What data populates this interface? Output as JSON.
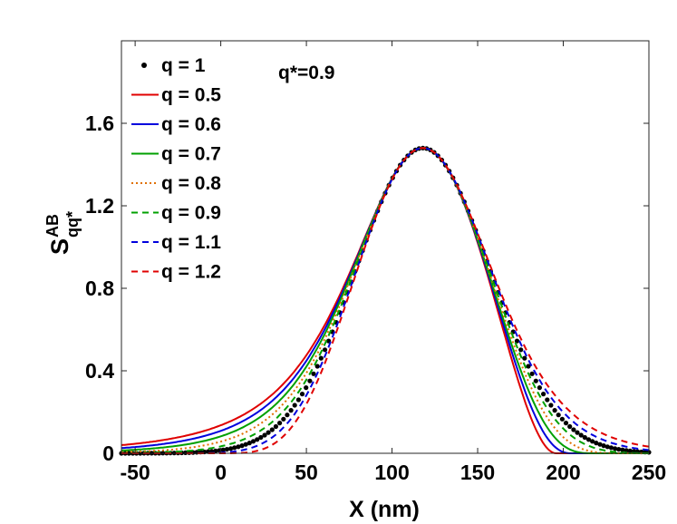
{
  "chart_data": {
    "type": "line",
    "title": "",
    "annotation": "q*=0.9",
    "xlabel": "X (nm)",
    "ylabel": {
      "main": "S",
      "superscript": "AB",
      "subscript": "qq*"
    },
    "xlim": [
      -58,
      250
    ],
    "ylim": [
      0,
      2.0
    ],
    "xticks": [
      -50,
      0,
      50,
      100,
      150,
      200,
      250
    ],
    "xtick_labels": [
      "-50",
      "0",
      "50",
      "100",
      "150",
      "200",
      "250"
    ],
    "yticks": [
      0,
      0.4,
      0.8,
      1.2,
      1.6
    ],
    "ytick_labels": [
      "0",
      "0.4",
      "0.8",
      "1.2",
      "1.6"
    ],
    "grid": false,
    "legend_position": "top-left",
    "peak": {
      "x": 118,
      "y": 1.48
    },
    "series": [
      {
        "name": "q = 1",
        "q": 1.0,
        "color": "#000000",
        "style": "dots"
      },
      {
        "name": "q = 0.5",
        "q": 0.5,
        "color": "#e00000",
        "style": "solid"
      },
      {
        "name": "q = 0.6",
        "q": 0.6,
        "color": "#0000dd",
        "style": "solid"
      },
      {
        "name": "q = 0.7",
        "q": 0.7,
        "color": "#00a000",
        "style": "solid"
      },
      {
        "name": "q = 0.8",
        "q": 0.8,
        "color": "#e07000",
        "style": "dotted"
      },
      {
        "name": "q = 0.9",
        "q": 0.9,
        "color": "#00a000",
        "style": "dashed"
      },
      {
        "name": "q = 1.1",
        "q": 1.1,
        "color": "#0000dd",
        "style": "dashed"
      },
      {
        "name": "q = 1.2",
        "q": 1.2,
        "color": "#e00000",
        "style": "dashed"
      }
    ]
  }
}
